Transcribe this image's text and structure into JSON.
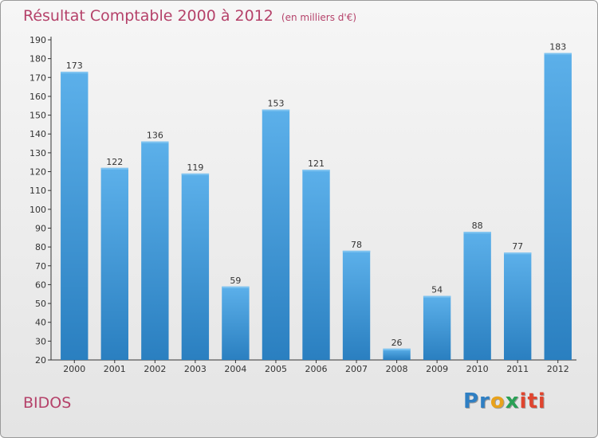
{
  "header": {
    "title": "Résultat Comptable 2000 à 2012",
    "subtitle": "(en milliers d'€)"
  },
  "commune": "BIDOS",
  "logo": {
    "p1": "Pr",
    "p2": "o",
    "p3": "x",
    "p4": "iti"
  },
  "colors": {
    "bar": "#3d97db",
    "barTop": "#5aaee8",
    "title": "#b5426a"
  },
  "chart_data": {
    "type": "bar",
    "title": "Résultat Comptable 2000 à 2012",
    "subtitle": "(en milliers d'€)",
    "xlabel": "",
    "ylabel": "",
    "ylim": [
      20,
      190
    ],
    "yticks": [
      20,
      30,
      40,
      50,
      60,
      70,
      80,
      90,
      100,
      110,
      120,
      130,
      140,
      150,
      160,
      170,
      180,
      190
    ],
    "grid": false,
    "categories": [
      "2000",
      "2001",
      "2002",
      "2003",
      "2004",
      "2005",
      "2006",
      "2007",
      "2008",
      "2009",
      "2010",
      "2011",
      "2012"
    ],
    "values": [
      173,
      122,
      136,
      119,
      59,
      153,
      121,
      78,
      26,
      54,
      88,
      77,
      183
    ]
  }
}
